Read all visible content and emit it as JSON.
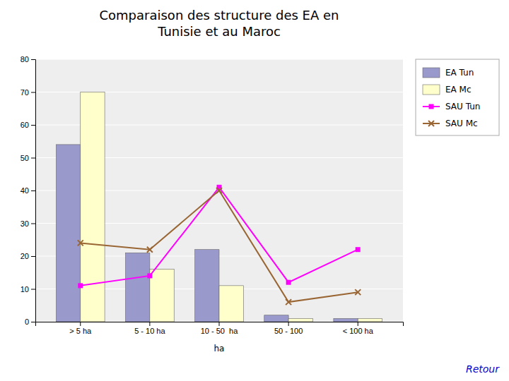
{
  "chart_data": {
    "type": "bar",
    "title": "Comparaison des structure des EA en\nTunisie et au Maroc",
    "categories": [
      "> 5 ha",
      "5 - 10 ha",
      "10 - 50  ha",
      "50 - 100",
      "< 100 ha"
    ],
    "xlabel": "ha",
    "series": [
      {
        "name": "EA Tun",
        "type": "bar",
        "color": "#9999cc",
        "values": [
          54,
          21,
          22,
          2,
          1
        ]
      },
      {
        "name": "EA Mc",
        "type": "bar",
        "color": "#ffffcc",
        "values": [
          70,
          16,
          11,
          1,
          1
        ]
      },
      {
        "name": "SAU Tun",
        "type": "line",
        "color": "#ff00ff",
        "marker": "square",
        "values": [
          11,
          14,
          41,
          12,
          22
        ]
      },
      {
        "name": "SAU Mc",
        "type": "line",
        "color": "#996633",
        "marker": "x",
        "values": [
          24,
          22,
          40,
          6,
          9
        ]
      }
    ],
    "ylim": [
      0,
      80
    ],
    "yticks": [
      0,
      10,
      20,
      30,
      40,
      50,
      60,
      70,
      80
    ],
    "grid": true,
    "legend": "right",
    "annotations": [
      "Retour"
    ]
  }
}
